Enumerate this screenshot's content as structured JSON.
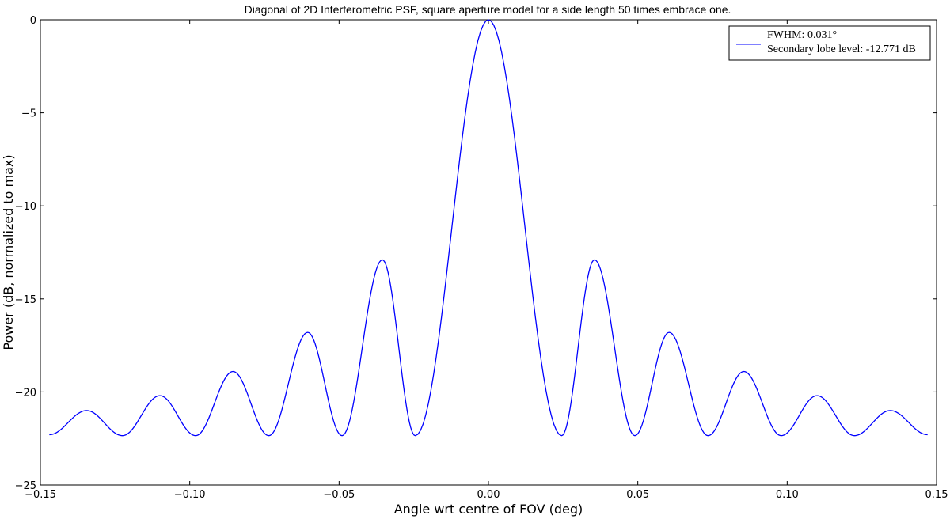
{
  "chart_data": {
    "type": "line",
    "title": "Diagonal of 2D Interferometric PSF, square aperture model for a side length 50 times embrace one.",
    "xlabel": "Angle wrt centre of FOV (deg)",
    "ylabel": "Power (dB, normalized to max)",
    "xlim": [
      -0.15,
      0.15
    ],
    "ylim": [
      -25,
      0
    ],
    "xticks": [
      -0.15,
      -0.1,
      -0.05,
      0.0,
      0.05,
      0.1,
      0.15
    ],
    "xtick_labels": [
      "−0.15",
      "−0.10",
      "−0.05",
      "0.00",
      "0.05",
      "0.10",
      "0.15"
    ],
    "yticks": [
      0,
      -5,
      -10,
      -15,
      -20,
      -25
    ],
    "ytick_labels": [
      "0",
      "−5",
      "−10",
      "−15",
      "−20",
      "−25"
    ],
    "grid": false,
    "legend_position": "top-right",
    "legend": {
      "line1": "FWHM: 0.031°",
      "line2": "Secondary lobe level: -12.771 dB"
    },
    "series": [
      {
        "color": "#0000ff",
        "x": [
          -0.147,
          -0.1345,
          -0.1225,
          -0.11,
          -0.098,
          -0.0855,
          -0.0735,
          -0.0605,
          -0.049,
          -0.0355,
          -0.0245,
          0.0,
          0.0245,
          0.0355,
          0.049,
          0.0605,
          0.0735,
          0.0855,
          0.098,
          0.11,
          0.1225,
          0.1345,
          0.147
        ],
        "y": [
          -22.3,
          -21.0,
          -22.35,
          -20.2,
          -22.35,
          -18.9,
          -22.35,
          -16.8,
          -22.35,
          -12.9,
          -22.35,
          0.0,
          -22.35,
          -12.9,
          -22.35,
          -16.8,
          -22.35,
          -18.9,
          -22.35,
          -20.2,
          -22.35,
          -21.0,
          -22.3
        ]
      }
    ]
  }
}
